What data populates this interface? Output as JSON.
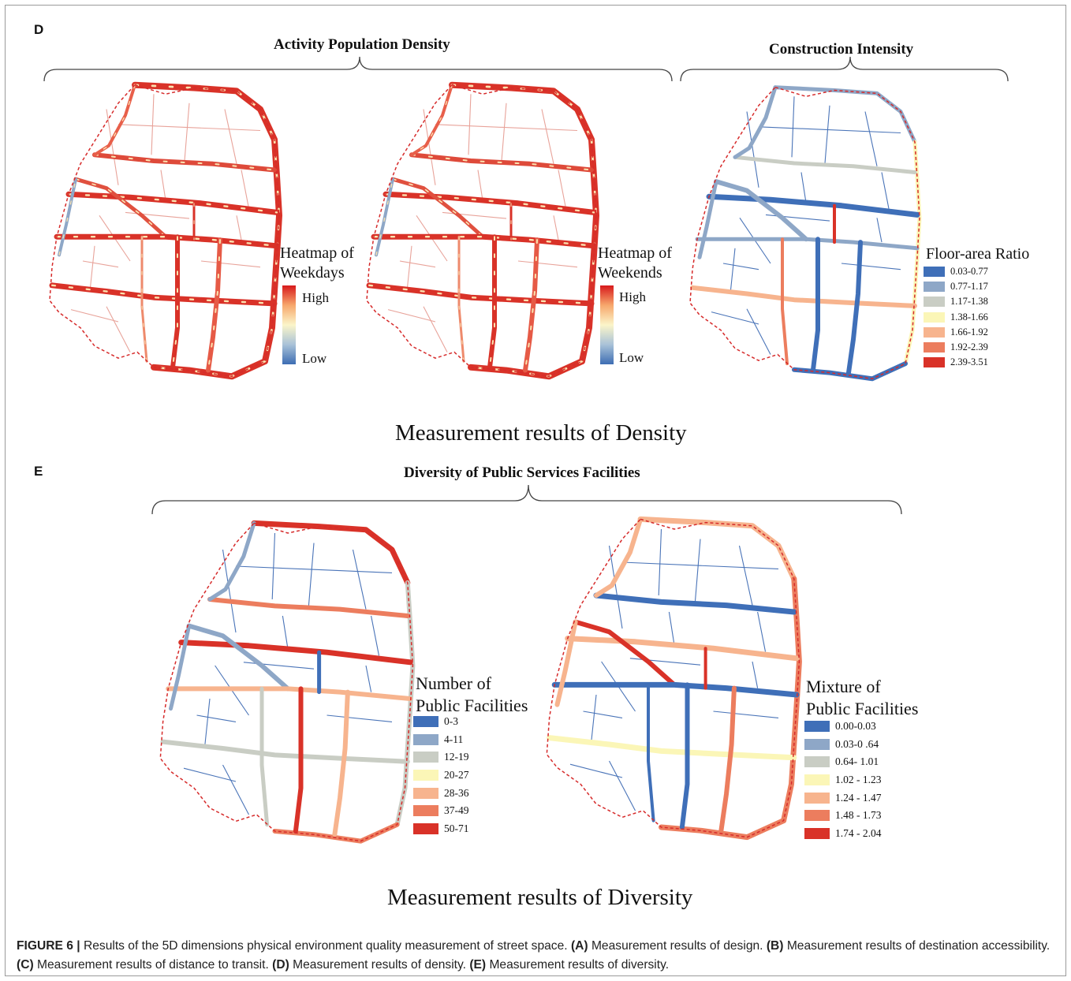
{
  "panels": {
    "d": {
      "letter": "D",
      "section_title": "Measurement results of Density",
      "groups": {
        "activity": "Activity Population Density",
        "construction": "Construction Intensity"
      },
      "maps": [
        {
          "id": "weekdays",
          "legend_title_1": "Heatmap of",
          "legend_title_2": "Weekdays",
          "high": "High",
          "low": "Low"
        },
        {
          "id": "weekends",
          "legend_title_1": "Heatmap of",
          "legend_title_2": "Weekends",
          "high": "High",
          "low": "Low"
        }
      ],
      "far_legend": {
        "title": "Floor-area Ratio",
        "classes": [
          {
            "label": "0.03-0.77",
            "color": "#3f6fb8"
          },
          {
            "label": "0.77-1.17",
            "color": "#8ea7c7"
          },
          {
            "label": "1.17-1.38",
            "color": "#c9cdc4"
          },
          {
            "label": "1.38-1.66",
            "color": "#fbf6b7"
          },
          {
            "label": "1.66-1.92",
            "color": "#f7b48e"
          },
          {
            "label": "1.92-2.39",
            "color": "#ec7d5e"
          },
          {
            "label": "2.39-3.51",
            "color": "#d93228"
          }
        ]
      }
    },
    "e": {
      "letter": "E",
      "section_title": "Measurement results of Diversity",
      "group_title": "Diversity of Public Services Facilities",
      "number_legend": {
        "title_1": "Number of",
        "title_2": "Public Facilities",
        "classes": [
          {
            "label": "0-3",
            "color": "#3f6fb8"
          },
          {
            "label": "4-11",
            "color": "#8ea7c7"
          },
          {
            "label": "12-19",
            "color": "#c9cdc4"
          },
          {
            "label": "20-27",
            "color": "#fbf6b7"
          },
          {
            "label": "28-36",
            "color": "#f7b48e"
          },
          {
            "label": "37-49",
            "color": "#ec7d5e"
          },
          {
            "label": "50-71",
            "color": "#d93228"
          }
        ]
      },
      "mixture_legend": {
        "title_1": "Mixture of",
        "title_2": "Public Facilities",
        "classes": [
          {
            "label": "0.00-0.03",
            "color": "#3f6fb8"
          },
          {
            "label": "0.03-0 .64",
            "color": "#8ea7c7"
          },
          {
            "label": "0.64- 1.01",
            "color": "#c9cdc4"
          },
          {
            "label": "1.02 - 1.23",
            "color": "#fbf6b7"
          },
          {
            "label": "1.24 - 1.47",
            "color": "#f7b48e"
          },
          {
            "label": "1.48 - 1.73",
            "color": "#ec7d5e"
          },
          {
            "label": "1.74 - 2.04",
            "color": "#d93228"
          }
        ]
      }
    }
  },
  "caption": {
    "figure_label": "FIGURE 6 |",
    "intro": " Results of the 5D dimensions physical environment quality measurement of street space. ",
    "a_tag": "(A)",
    "a_text": " Measurement results of design. ",
    "b_tag": "(B)",
    "b_text": " Measurement results of destination accessibility. ",
    "c_tag": "(C)",
    "c_text": " Measurement results of distance to transit. ",
    "d_tag": "(D)",
    "d_text": " Measurement results of density. ",
    "e_tag": "(E)",
    "e_text": " Measurement results of diversity."
  },
  "colors": {
    "blue": "#3f6fb8",
    "blue_gray": "#8ea7c7",
    "gray": "#c9cdc4",
    "yellow": "#fbf6b7",
    "peach": "#f7b48e",
    "orange": "#ec7d5e",
    "red": "#d93228",
    "boundary": "#d62b2b"
  }
}
